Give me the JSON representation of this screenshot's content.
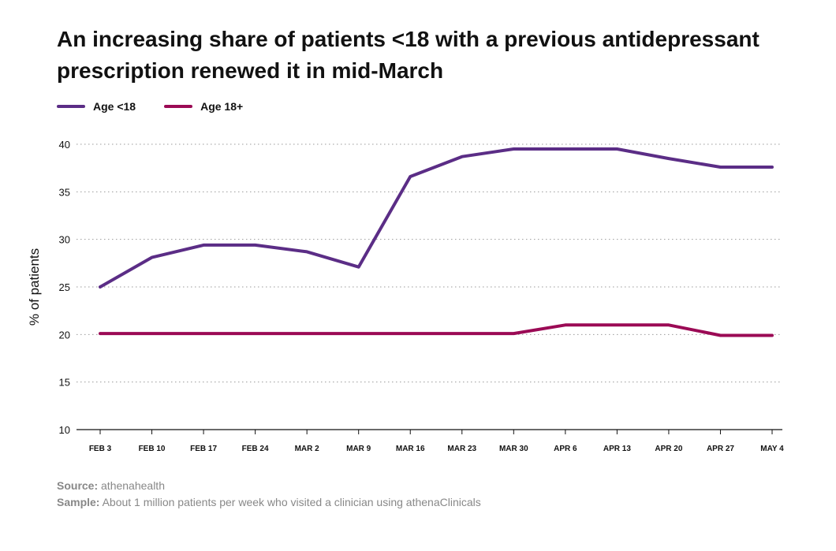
{
  "chart_data": {
    "type": "line",
    "title": "An increasing share of patients <18 with a previous antidepressant prescription renewed it in mid-March",
    "ylabel": "% of patients",
    "xlabel": "",
    "ylim": [
      10,
      40
    ],
    "yticks": [
      10,
      15,
      20,
      25,
      30,
      35,
      40
    ],
    "grid": "horizontal-dotted",
    "legend": "top-left",
    "categories": [
      "FEB 3",
      "FEB 10",
      "FEB 17",
      "FEB 24",
      "MAR 2",
      "MAR 9",
      "MAR 16",
      "MAR 23",
      "MAR 30",
      "APR 6",
      "APR 13",
      "APR 20",
      "APR 27",
      "MAY 4"
    ],
    "series": [
      {
        "name": "Age <18",
        "color": "#5b2d86",
        "values": [
          25.0,
          28.1,
          29.4,
          29.4,
          28.7,
          27.1,
          36.6,
          38.7,
          39.5,
          39.5,
          39.5,
          38.5,
          37.6,
          37.6
        ]
      },
      {
        "name": "Age 18+",
        "color": "#9b0a55",
        "values": [
          20.1,
          20.1,
          20.1,
          20.1,
          20.1,
          20.1,
          20.1,
          20.1,
          20.1,
          21.0,
          21.0,
          21.0,
          19.9,
          19.9
        ]
      }
    ]
  },
  "footer": {
    "source_label": "Source:",
    "source_text": " athenahealth",
    "sample_label": "Sample:",
    "sample_text": " About 1 million patients per week who visited a clinician using athenaClinicals"
  }
}
